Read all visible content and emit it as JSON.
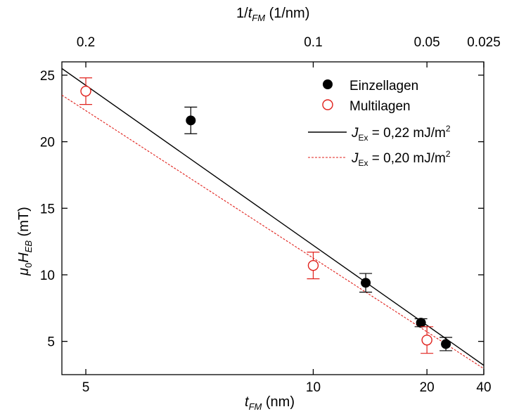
{
  "chart_data": {
    "type": "scatter",
    "x_scale": "reciprocal",
    "x_range": [
      4.75,
      40
    ],
    "ylim": [
      2.5,
      26
    ],
    "grid": false,
    "legend_placement": "top-right",
    "xlabel": {
      "main": "t",
      "sub": "FM",
      "unit": " (nm)"
    },
    "ylabel": {
      "main": "μ",
      "sub0": "0",
      "main2": "H",
      "sub1": "EB",
      "unit": " (mT)"
    },
    "x2label": {
      "prefix": "1/",
      "main": "t",
      "sub": "FM",
      "unit": " (1/nm)"
    },
    "xticks": [
      {
        "value": 5,
        "label": "5"
      },
      {
        "value": 10,
        "label": "10"
      },
      {
        "value": 20,
        "label": "20"
      },
      {
        "value": 40,
        "label": "40"
      }
    ],
    "x2ticks": [
      {
        "value": 0.2,
        "label": "0.2"
      },
      {
        "value": 0.1,
        "label": "0.1"
      },
      {
        "value": 0.05,
        "label": "0.05"
      },
      {
        "value": 0.025,
        "label": "0.025"
      }
    ],
    "yticks": [
      {
        "value": 5,
        "label": "5"
      },
      {
        "value": 10,
        "label": "10"
      },
      {
        "value": 15,
        "label": "15"
      },
      {
        "value": 20,
        "label": "20"
      },
      {
        "value": 25,
        "label": "25"
      }
    ],
    "series": [
      {
        "name": "Einzellagen",
        "kind": "points",
        "marker": "filled-circle",
        "color": "#000000",
        "points": [
          {
            "x": 6.5,
            "y": 21.6,
            "err": 1.0
          },
          {
            "x": 13,
            "y": 9.4,
            "err": 0.7
          },
          {
            "x": 19,
            "y": 6.4,
            "err": 0.3
          },
          {
            "x": 24,
            "y": 4.8,
            "err": 0.5
          }
        ]
      },
      {
        "name": "Multilagen",
        "kind": "points",
        "marker": "open-circle",
        "color": "#e0201b",
        "points": [
          {
            "x": 5,
            "y": 23.8,
            "err": 1.0
          },
          {
            "x": 10,
            "y": 10.7,
            "err": 1.0
          },
          {
            "x": 20,
            "y": 5.1,
            "err": 1.0
          }
        ]
      },
      {
        "name": "J_Ex = 0,22 mJ/m²",
        "label": {
          "main": "J",
          "sub": "Ex",
          "rest": " = 0,22 mJ/m",
          "sup": "2"
        },
        "kind": "line",
        "style": "solid",
        "color": "#000000",
        "points": [
          {
            "x": 4.75,
            "y": 25.5
          },
          {
            "x": 40,
            "y": 3.2
          }
        ]
      },
      {
        "name": "J_Ex = 0,20 mJ/m²",
        "label": {
          "main": "J",
          "sub": "Ex",
          "rest": " = 0,20 mJ/m",
          "sup": "2"
        },
        "kind": "line",
        "style": "dashed",
        "color": "#e0201b",
        "points": [
          {
            "x": 4.75,
            "y": 23.5
          },
          {
            "x": 40,
            "y": 2.95
          }
        ]
      }
    ]
  }
}
